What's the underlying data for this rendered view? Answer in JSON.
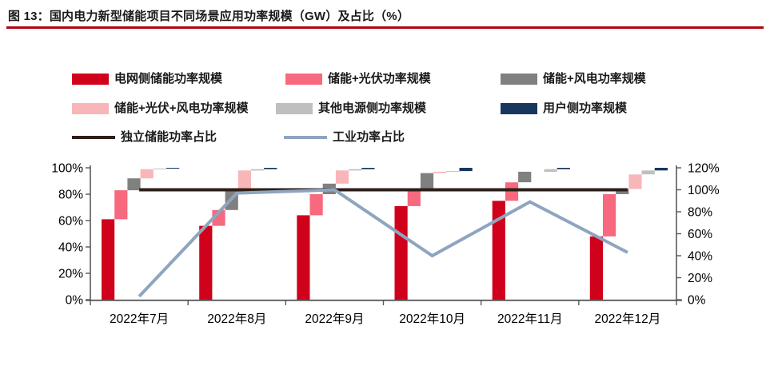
{
  "figure": {
    "title": "图 13：国内电力新型储能项目不同场景应用功率规模（GW）及占比（%）",
    "accent_color": "#b00612"
  },
  "chart_data": {
    "type": "bar",
    "subtype": "waterfall_stacked_bars_with_lines",
    "title": "国内电力新型储能项目不同场景应用功率规模（GW）及占比（%）",
    "categories": [
      "2022年7月",
      "2022年8月",
      "2022年9月",
      "2022年10月",
      "2022年11月",
      "2022年12月"
    ],
    "series": [
      {
        "name": "电网侧储能功率规模",
        "type": "bar",
        "axis": "left",
        "color": "#d0021b",
        "values": [
          61,
          56,
          64,
          71,
          75,
          48
        ]
      },
      {
        "name": "储能+光伏功率规模",
        "type": "bar",
        "axis": "left",
        "color": "#f6697e",
        "values": [
          22,
          12,
          16,
          12,
          14,
          32
        ]
      },
      {
        "name": "储能+风电功率规模",
        "type": "bar",
        "axis": "left",
        "color": "#808080",
        "values": [
          9,
          16,
          8,
          13,
          8,
          4
        ]
      },
      {
        "name": "储能+光伏+风电功率规模",
        "type": "bar",
        "axis": "left",
        "color": "#f9b6b8",
        "values": [
          7,
          14,
          10,
          1,
          0,
          11
        ]
      },
      {
        "name": "其他电源侧功率规模",
        "type": "bar",
        "axis": "left",
        "color": "#bfbfbf",
        "values": [
          0.5,
          1,
          1,
          0.5,
          2,
          3
        ]
      },
      {
        "name": "用户侧功率规模",
        "type": "bar",
        "axis": "left",
        "color": "#17375e",
        "values": [
          0.5,
          1,
          1,
          2.5,
          1,
          2
        ]
      },
      {
        "name": "独立储能功率占比",
        "type": "line",
        "axis": "right",
        "color": "#2e1f18",
        "values": [
          100,
          100,
          100,
          100,
          100,
          100
        ]
      },
      {
        "name": "工业功率占比",
        "type": "line",
        "axis": "right",
        "color": "#8ea5bf",
        "values": [
          3,
          97,
          100,
          40,
          89,
          43
        ]
      }
    ],
    "left_axis": {
      "min": 0,
      "max": 100,
      "tick_labels": [
        "0%",
        "20%",
        "40%",
        "60%",
        "80%",
        "100%"
      ]
    },
    "right_axis": {
      "min": 0,
      "max": 120,
      "tick_labels": [
        "0%",
        "20%",
        "40%",
        "60%",
        "80%",
        "100%",
        "120%"
      ]
    },
    "legend_position": "top",
    "grid": false,
    "bar_note": "waterfall: each segment is drawn in its own column, starting at the cumulative top of the previous segment; monthly totals = 100%"
  }
}
